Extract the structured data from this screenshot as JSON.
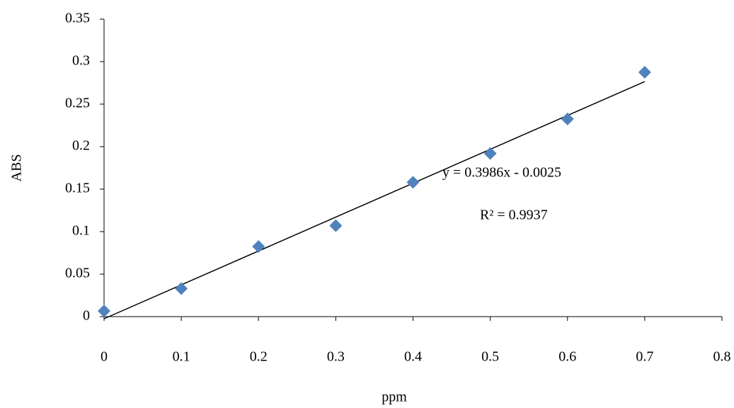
{
  "chart_data": {
    "type": "scatter",
    "x_label": "ppm",
    "y_label": "ABS",
    "series": [
      {
        "name": "ABS",
        "color": "#4f81bd",
        "x": [
          0,
          0.1,
          0.2,
          0.3,
          0.4,
          0.5,
          0.6,
          0.7
        ],
        "values": [
          0.0067,
          0.033,
          0.0825,
          0.107,
          0.158,
          0.192,
          0.2325,
          0.2875
        ]
      }
    ],
    "trendline": {
      "equation": "y = 0.3986x - 0.0025",
      "r_squared": "R² = 0.9937",
      "slope": 0.3986,
      "intercept": -0.0025,
      "color": "#000000"
    },
    "xlim": [
      0,
      0.8
    ],
    "xticks": [
      0,
      0.1,
      0.2,
      0.3,
      0.4,
      0.5,
      0.6,
      0.7,
      0.8
    ],
    "ylim": [
      0,
      0.35
    ],
    "yticks": [
      0,
      0.05,
      0.1,
      0.15,
      0.2,
      0.25,
      0.3,
      0.35
    ],
    "grid": false
  }
}
